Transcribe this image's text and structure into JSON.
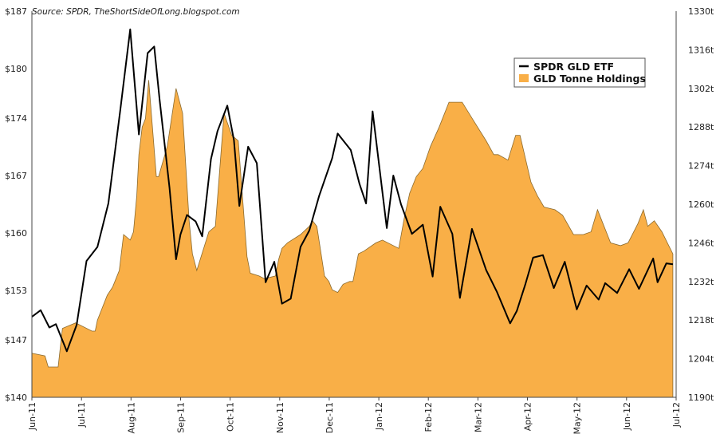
{
  "chart_data": {
    "type": "area",
    "title": "",
    "source_note": "Source: SPDR, TheShortSideOfLong.blogspot.com",
    "x_tick_labels": [
      "Jun-11",
      "Jul-11",
      "Aug-11",
      "Sep-11",
      "Oct-11",
      "Nov-11",
      "Dec-11",
      "Jan-12",
      "Feb-12",
      "Mar-12",
      "Apr-12",
      "May-12",
      "Jun-12",
      "Jul-12"
    ],
    "x_range": [
      0,
      59
    ],
    "y_left": {
      "label": "",
      "lim": [
        140,
        187
      ],
      "ticks": [
        140,
        147,
        153,
        160,
        167,
        174,
        180,
        187
      ],
      "tick_labels": [
        "$140",
        "$147",
        "$153",
        "$160",
        "$167",
        "$174",
        "$180",
        "$187"
      ]
    },
    "y_right": {
      "label": "",
      "lim": [
        1190,
        1330
      ],
      "ticks": [
        1190,
        1204,
        1218,
        1232,
        1246,
        1260,
        1274,
        1288,
        1302,
        1316,
        1330
      ],
      "tick_labels": [
        "1190t",
        "1204t",
        "1218t",
        "1232t",
        "1246t",
        "1260t",
        "1274t",
        "1288t",
        "1302t",
        "1316t",
        "1330t"
      ]
    },
    "legend": {
      "placement": "top-right",
      "entries": [
        "SPDR GLD ETF",
        "GLD Tonne Holdings"
      ]
    },
    "colors": {
      "area": "#F9AF47",
      "area_edge": "#8A6A2E",
      "line": "#000000"
    },
    "series": [
      {
        "name": "SPDR GLD ETF",
        "type": "line",
        "axis": "left",
        "x": [
          0,
          0.8,
          1.6,
          2.2,
          3.2,
          4.1,
          5.0,
          6.0,
          7.0,
          8.1,
          9.0,
          9.8,
          10.6,
          11.2,
          11.7,
          12.6,
          13.2,
          13.6,
          14.2,
          15.0,
          15.6,
          16.4,
          17.0,
          17.9,
          18.5,
          19.0,
          19.8,
          20.6,
          21.4,
          22.2,
          22.9,
          23.7,
          24.6,
          25.4,
          26.3,
          27.5,
          28.0,
          29.2,
          30.0,
          30.6,
          31.2,
          32.5,
          33.1,
          33.8,
          34.8,
          35.8,
          36.7,
          37.4,
          38.5,
          39.2,
          40.3,
          41.6,
          42.6,
          43.8,
          44.4,
          45.2,
          45.9,
          46.8,
          47.8,
          48.8,
          49.9,
          50.8,
          51.9,
          52.5,
          53.6,
          54.7,
          55.6,
          56.9,
          57.3,
          58.1,
          58.7
        ],
        "values": [
          149.8,
          150.6,
          148.5,
          148.9,
          145.6,
          148.8,
          156.6,
          158.3,
          163.6,
          175.0,
          184.8,
          172.0,
          181.9,
          182.7,
          176.2,
          165.5,
          156.8,
          159.8,
          162.2,
          161.4,
          159.6,
          169.0,
          172.4,
          175.5,
          171.3,
          163.3,
          170.5,
          168.5,
          154.0,
          156.5,
          151.4,
          152.0,
          158.3,
          160.3,
          164.5,
          169.1,
          172.1,
          170.1,
          166.0,
          163.6,
          174.8,
          160.6,
          167.0,
          163.5,
          159.9,
          161.0,
          154.7,
          163.2,
          159.9,
          152.1,
          160.5,
          155.5,
          152.8,
          149.0,
          150.5,
          153.8,
          157.0,
          157.3,
          153.3,
          156.5,
          150.7,
          153.6,
          151.9,
          153.9,
          152.7,
          155.6,
          153.2,
          156.9,
          154.0,
          156.3,
          156.2
        ]
      },
      {
        "name": "GLD Tonne Holdings",
        "type": "area",
        "axis": "right",
        "x": [
          0,
          1.2,
          1.5,
          2.4,
          2.8,
          4.0,
          5.5,
          5.8,
          6.0,
          6.9,
          7.4,
          8.0,
          8.4,
          9.0,
          9.3,
          9.6,
          9.8,
          10.1,
          10.4,
          10.7,
          11.4,
          11.6,
          12.4,
          13.2,
          13.8,
          14.4,
          14.7,
          15.1,
          16.2,
          16.8,
          17.6,
          18.3,
          18.9,
          19.7,
          20.0,
          20.8,
          21.3,
          22.3,
          22.6,
          22.9,
          23.4,
          24.6,
          25.4,
          25.7,
          26.1,
          26.8,
          27.2,
          27.5,
          28.0,
          28.5,
          29.1,
          29.4,
          29.9,
          30.4,
          31.5,
          32.1,
          33.6,
          34.1,
          34.6,
          35.2,
          35.8,
          36.5,
          37.3,
          38.2,
          39.4,
          40.5,
          41.6,
          42.3,
          42.7,
          43.6,
          44.3,
          44.7,
          45.7,
          46.3,
          46.9,
          47.9,
          48.6,
          49.6,
          50.5,
          51.2,
          51.8,
          52.3,
          53.0,
          53.9,
          54.6,
          55.5,
          56.0,
          56.4,
          57.0,
          57.7,
          58.2,
          58.7
        ],
        "values": [
          1206,
          1205,
          1201,
          1201,
          1215,
          1217,
          1214,
          1214,
          1218,
          1227,
          1230,
          1236,
          1249,
          1247,
          1250,
          1263,
          1278,
          1288,
          1291,
          1305,
          1270,
          1270,
          1281,
          1302,
          1293,
          1254,
          1242,
          1236,
          1250,
          1252,
          1293,
          1285,
          1283,
          1241,
          1235,
          1234,
          1233,
          1234,
          1240,
          1244,
          1246,
          1249,
          1252,
          1254,
          1252,
          1234,
          1232,
          1229,
          1228,
          1231,
          1232,
          1232,
          1242,
          1243,
          1246,
          1247,
          1244,
          1255,
          1264,
          1270,
          1273,
          1281,
          1288,
          1297,
          1297,
          1290,
          1283,
          1278,
          1278,
          1276,
          1285,
          1285,
          1268,
          1263,
          1259,
          1258,
          1256,
          1249,
          1249,
          1250,
          1258,
          1253,
          1246,
          1245,
          1246,
          1253,
          1258,
          1252,
          1254,
          1250,
          1246,
          1242
        ]
      }
    ]
  }
}
